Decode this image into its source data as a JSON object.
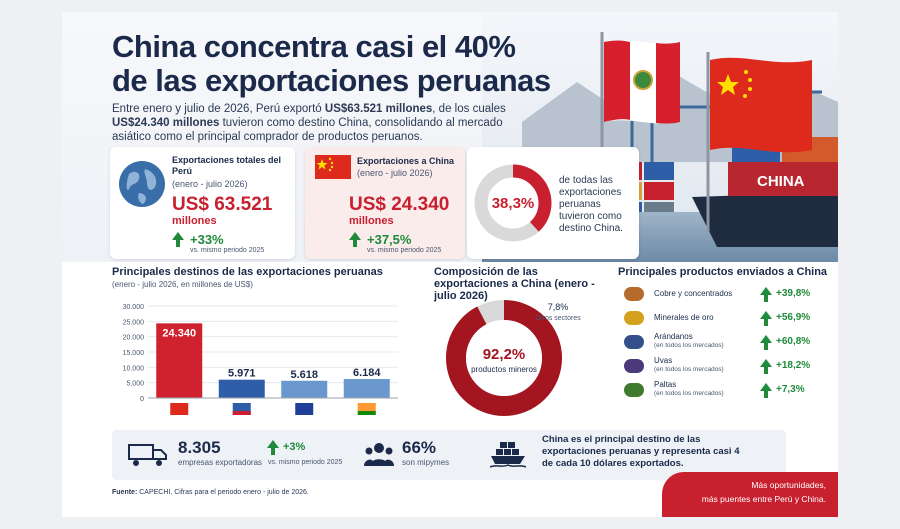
{
  "header": {
    "title_line1": "China concentra casi el 40%",
    "title_line2": "de las exportaciones peruanas",
    "intro_part1": "Entre enero y julio de 2026, Perú exportó ",
    "intro_bold1": "US$63.521 millones",
    "intro_part2": ", de los cuales ",
    "intro_bold2": "US$24.340 millones",
    "intro_part3": " tuvieron como destino China, consolidando al mercado asiático como el principal comprador de productos peruanos."
  },
  "scene": {
    "ship_text": "CHINA"
  },
  "stats": {
    "total": {
      "label": "Exportaciones totales del Perú",
      "period": "(enero - julio 2026)",
      "value": "US$ 63.521",
      "unit": "millones",
      "change": "+33%",
      "change_note": "vs. mismo periodo 2025"
    },
    "china": {
      "label": "Exportaciones a China",
      "period": "(enero - julio 2026)",
      "value": "US$ 24.340",
      "unit": "millones",
      "change": "+37,5%",
      "change_note": "vs. mismo periodo 2025"
    },
    "share": {
      "value": "38,3%",
      "fraction": 0.383,
      "text": "de todas las exportaciones peruanas tuvieron como destino China."
    }
  },
  "destinations": {
    "title": "Principales destinos de las exportaciones peruanas",
    "subtitle": "(enero - julio 2026, en millones de US$)"
  },
  "composition": {
    "title": "Composición de las exportaciones a China (enero - julio 2026)",
    "main_value": "92,2%",
    "main_label": "productos mineros",
    "other_value": "7,8%",
    "other_label": "Otros sectores",
    "main_fraction": 0.922
  },
  "products": {
    "title": "Principales productos enviados a China",
    "items": [
      {
        "name": "Cobre y concentrados",
        "note": "",
        "change": "+39,8%",
        "icon": "copper-icon"
      },
      {
        "name": "Minerales de oro",
        "note": "",
        "change": "+56,9%",
        "icon": "gold-icon"
      },
      {
        "name": "Arándanos",
        "note": "(en todos los mercados)",
        "change": "+60,8%",
        "icon": "blueberry-icon"
      },
      {
        "name": "Uvas",
        "note": "(en todos los mercados)",
        "change": "+18,2%",
        "icon": "grapes-icon"
      },
      {
        "name": "Paltas",
        "note": "(en todos los mercados)",
        "change": "+7,3%",
        "icon": "avocado-icon"
      }
    ]
  },
  "bottom": {
    "companies_value": "8.305",
    "companies_label": "empresas exportadoras",
    "companies_change": "+3%",
    "companies_note": "vs. mismo periodo 2025",
    "mype_value": "66%",
    "mype_label": "son mipymes",
    "summary": "China es el principal destino de las exportaciones peruanas y representa casi 4 de cada 10 dólares exportados."
  },
  "source": {
    "label": "Fuente:",
    "text": " CAPECHI. Cifras para el periodo enero - julio de 2026."
  },
  "ribbon": {
    "line1": "Más oportunidades,",
    "line2": "más puentes entre Perú y China."
  },
  "chart_data": {
    "type": "bar",
    "title": "Principales destinos de las exportaciones peruanas",
    "subtitle": "(enero - julio 2026, en millones de US$)",
    "categories": [
      "China",
      "Estados Unidos",
      "Unión Europea",
      "India"
    ],
    "values": [
      24340,
      5971,
      5618,
      6184
    ],
    "value_labels": [
      "24.340",
      "5.971",
      "5.618",
      "6.184"
    ],
    "y_ticks": [
      "0",
      "5.000",
      "10.000",
      "15.000",
      "20.000",
      "25.000",
      "30.000"
    ],
    "ylim": [
      0,
      30000
    ],
    "colors": [
      "#d0222e",
      "#2f5ea8",
      "#6b97cf",
      "#6b97cf"
    ]
  },
  "colors": {
    "red": "#c8202f",
    "navy": "#1b2a4a",
    "green": "#1e8a3a",
    "grey": "#d9d9d9"
  }
}
